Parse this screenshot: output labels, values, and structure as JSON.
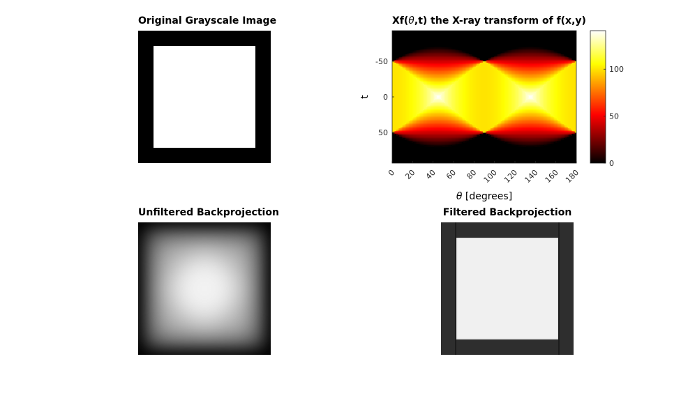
{
  "chart_data": [
    {
      "type": "image",
      "title": "Original Grayscale Image",
      "description_values": {
        "background_level": 0,
        "square_level": 1,
        "square_extent_fraction": [
          0.115,
          0.885
        ]
      }
    },
    {
      "type": "heatmap",
      "title_prefix": "Xf(",
      "title_theta": "θ",
      "title_suffix": ",t) the X-ray transform of f(x,y)",
      "xlabel_theta": "θ",
      "xlabel_suffix": " [degrees]",
      "ylabel": "t",
      "xlim": [
        0,
        180
      ],
      "ylim": [
        -93,
        93
      ],
      "y_reversed": true,
      "xticks": [
        0,
        20,
        40,
        60,
        80,
        100,
        120,
        140,
        160,
        180
      ],
      "xtick_labels": [
        "0",
        "20",
        "40",
        "60",
        "80",
        "100",
        "120",
        "140",
        "160",
        "180"
      ],
      "yticks": [
        -50,
        0,
        50
      ],
      "ytick_labels": [
        "-50",
        "0",
        "50"
      ],
      "square_half_width": 50,
      "peak_value": 141,
      "colormap": "hot",
      "colorbar": {
        "ticks": [
          0,
          50,
          100
        ],
        "tick_labels": [
          "0",
          "50",
          "100"
        ],
        "clim": [
          0,
          141
        ]
      }
    },
    {
      "type": "image",
      "title": "Unfiltered Backprojection"
    },
    {
      "type": "image",
      "title": "Filtered Backprojection",
      "description_values": {
        "background_level": 0.2,
        "square_level": 0.95
      }
    }
  ],
  "colors": {
    "hot_dark": "#000000",
    "hot_red": "#ff0000",
    "hot_yellow": "#ffff00",
    "hot_white": "#ffffff"
  }
}
